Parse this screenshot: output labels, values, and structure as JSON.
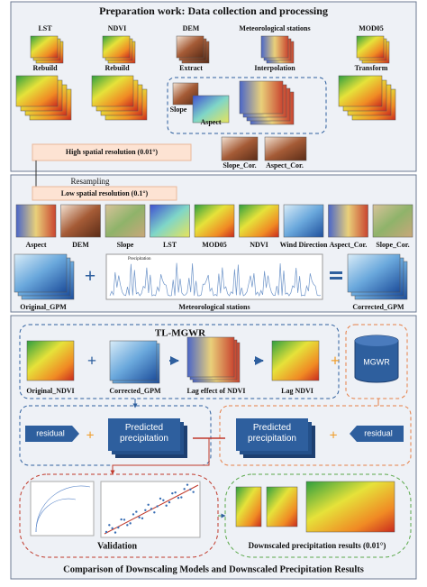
{
  "prep": {
    "title": "Preparation work: Data collection and processing",
    "inputs": [
      "LST",
      "NDVI",
      "DEM",
      "Meteorological stations",
      "MOD05"
    ],
    "ops": [
      "Rebuild",
      "Rebuild",
      "Extract",
      "Interpolation",
      "Transform"
    ],
    "terrain": [
      "Slope",
      "Aspect"
    ],
    "corrected": [
      "Slope_Cor.",
      "Aspect_Cor."
    ],
    "high_res": "High spatial resolution (0.01°)"
  },
  "resampling": "Resampling",
  "low": {
    "label": "Low spatial resolution (0.1°)",
    "layers": [
      "Aspect",
      "DEM",
      "Slope",
      "LST",
      "MOD05",
      "NDVI",
      "Wind Direction",
      "Aspect_Cor.",
      "Slope_Cor."
    ],
    "original": "Original_GPM",
    "stations": "Meteorological stations",
    "legend": "Precipitation",
    "corrected": "Corrected_GPM"
  },
  "model": {
    "title": "TL-MGWR",
    "inputs": [
      "Original_NDVI",
      "Corrected_GPM",
      "Lag effect of NDVI",
      "Lag NDVI"
    ],
    "mgwr": "MGWR",
    "residual_left": "residual",
    "predicted_left": "Predicted precipitation",
    "predicted_right": "Predicted precipitation",
    "residual_right": "residual",
    "validation": "Validation",
    "results": "Downscaled precipitation results (0.01°)"
  },
  "footer": "Comparison of Downscaling Models and Downscaled Precipitation Results"
}
